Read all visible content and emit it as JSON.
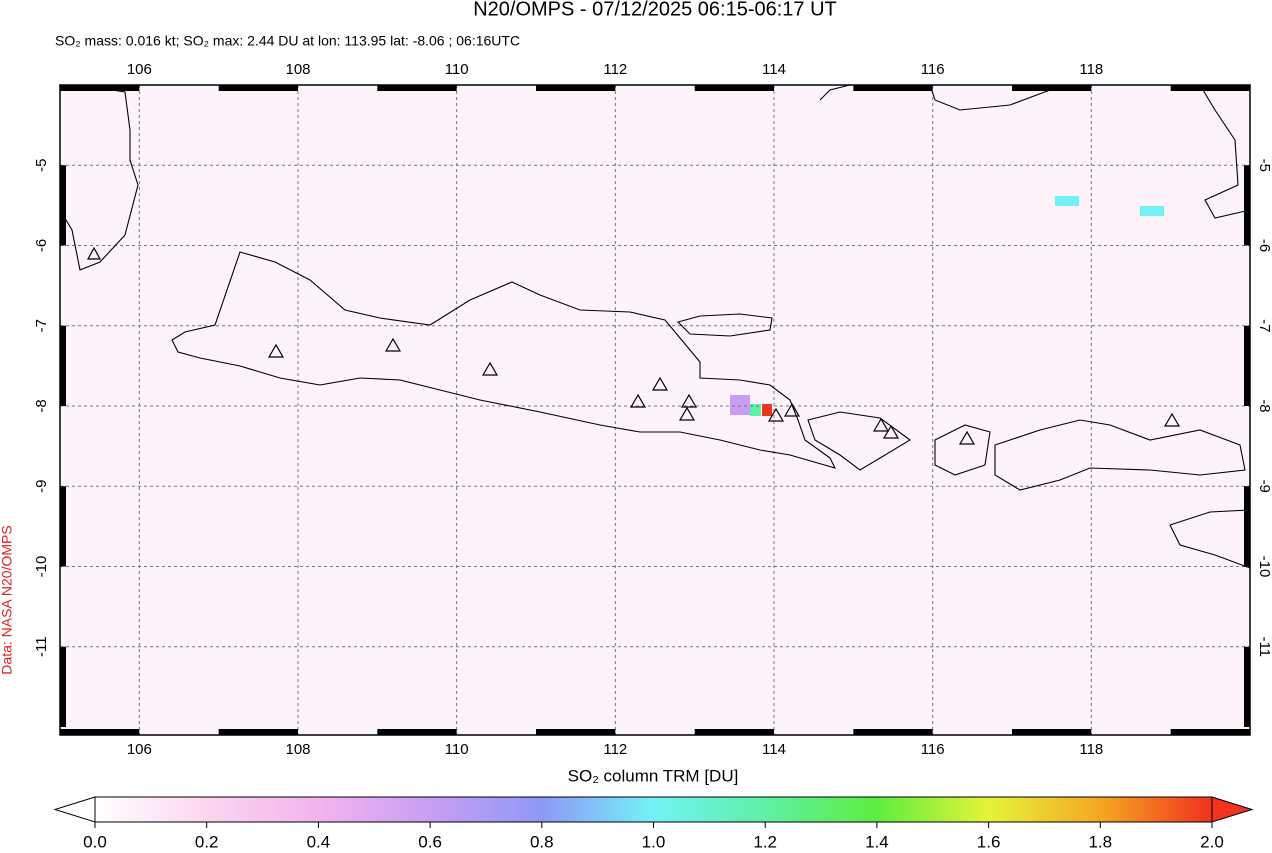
{
  "header": {
    "title": "N20/OMPS - 07/12/2025 06:15-06:17 UT",
    "subtitle": "SO₂ mass: 0.016 kt; SO₂ max: 2.44 DU at lon: 113.95 lat: -8.06 ; 06:16UTC"
  },
  "map": {
    "xlim": [
      105,
      120
    ],
    "ylim": [
      -12.1,
      -4
    ],
    "xticks": [
      106,
      108,
      110,
      112,
      114,
      116,
      118
    ],
    "yticks": [
      -5,
      -6,
      -7,
      -8,
      -9,
      -10,
      -11
    ],
    "grid": true
  },
  "colorbar": {
    "label": "SO₂ column TRM [DU]",
    "lim": [
      0,
      2
    ],
    "ticks": [
      {
        "value": 0,
        "label": "0.0"
      },
      0.2,
      0.4,
      0.6,
      0.8,
      {
        "value": 1,
        "label": "1.0"
      },
      1.2,
      1.4,
      1.6,
      1.8,
      {
        "value": 2,
        "label": "2.0"
      }
    ]
  },
  "credit": "Data: NASA N20/OMPS"
}
